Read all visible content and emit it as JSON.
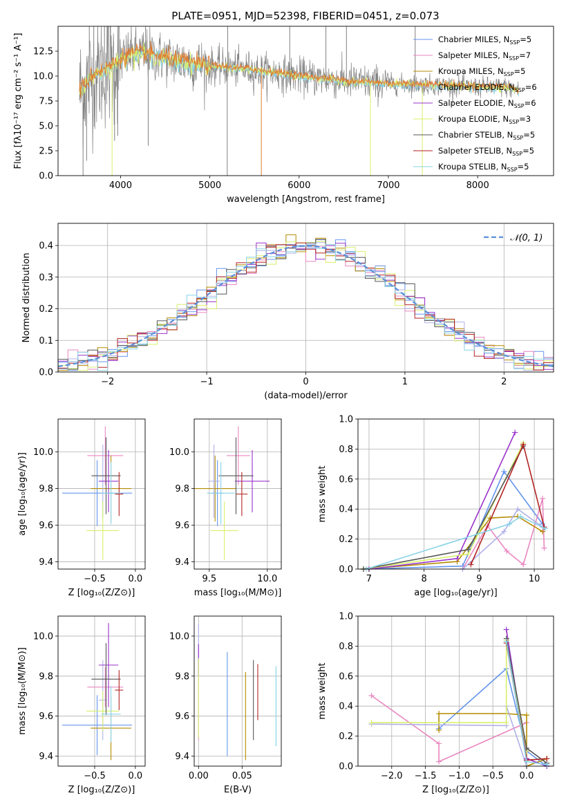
{
  "figure_title": "PLATE=0951, MJD=52398, FIBERID=0451, z=0.073",
  "series_colors": [
    "#6495ED",
    "#E986C0",
    "#B38B00",
    "#B0B0E8",
    "#9932CC",
    "#D8F06A",
    "#555555",
    "#B22222",
    "#87D2E6"
  ],
  "chart_data": [
    {
      "id": "spectrum",
      "type": "line",
      "title": "PLATE=0951, MJD=52398, FIBERID=0451, z=0.073",
      "xlabel": "wavelength [Angstrom, rest frame]",
      "ylabel": "Flux [fλ10⁻¹⁷ erg cm⁻² s⁻¹ A⁻¹]",
      "xlim": [
        3300,
        8850
      ],
      "ylim": [
        0,
        15
      ],
      "xticks": [
        "4000",
        "5000",
        "6000",
        "7000",
        "8000"
      ],
      "yticks": [
        "0.0",
        "2.5",
        "5.0",
        "7.5",
        "10.0",
        "12.5"
      ],
      "data_color": "#808080",
      "model_colors": [
        "#87D2E6",
        "#D8F06A",
        "#E07A2E"
      ],
      "legend_position": "upper right",
      "legend": [
        "Chabrier MILES, N_SSP=5",
        "Salpeter MILES, N_SSP=7",
        "Kroupa MILES, N_SSP=5",
        "Chabrier ELODIE, N_SSP=6",
        "Salpeter ELODIE, N_SSP=6",
        "Kroupa ELODIE, N_SSP=3",
        "Chabrier STELIB, N_SSP=5",
        "Salpeter STELIB, N_SSP=5",
        "Kroupa STELIB, N_SSP=5"
      ],
      "continuum": [
        [
          3550,
          8.5
        ],
        [
          3700,
          10.2
        ],
        [
          3900,
          11.0
        ],
        [
          4100,
          12.2
        ],
        [
          4300,
          12.2
        ],
        [
          4600,
          11.6
        ],
        [
          5000,
          11.0
        ],
        [
          5500,
          10.6
        ],
        [
          6000,
          10.0
        ],
        [
          6500,
          9.5
        ],
        [
          7000,
          9.2
        ],
        [
          7500,
          9.1
        ],
        [
          8000,
          8.9
        ],
        [
          8300,
          8.9
        ],
        [
          8500,
          8.5
        ]
      ],
      "spikes": [
        [
          3580,
          0
        ],
        [
          3620,
          1.5
        ],
        [
          3650,
          15
        ],
        [
          3700,
          15
        ],
        [
          3820,
          15
        ],
        [
          3905,
          0
        ],
        [
          3933,
          3.5
        ],
        [
          3968,
          4
        ],
        [
          4280,
          15
        ],
        [
          4310,
          3
        ],
        [
          5195,
          0
        ],
        [
          5200,
          15
        ],
        [
          5577,
          0
        ],
        [
          5895,
          15
        ],
        [
          6300,
          15
        ],
        [
          6530,
          15
        ],
        [
          6800,
          0
        ],
        [
          7300,
          15
        ],
        [
          7380,
          0
        ]
      ]
    },
    {
      "id": "residuals",
      "type": "histogram",
      "xlabel": "(data-model)/error",
      "ylabel": "Normed distribution",
      "xlim": [
        -2.5,
        2.5
      ],
      "ylim": [
        0,
        0.47
      ],
      "xticks": [
        "−2",
        "−1",
        "0",
        "1",
        "2"
      ],
      "yticks": [
        "0.0",
        "0.1",
        "0.2",
        "0.3",
        "0.4"
      ],
      "legend": [
        "𝒩(0, 1)"
      ],
      "legend_position": "upper right",
      "bin_edges": [
        -2.5,
        -2.4,
        -2.3,
        -2.2,
        -2.1,
        -2.0,
        -1.9,
        -1.8,
        -1.7,
        -1.6,
        -1.5,
        -1.4,
        -1.3,
        -1.2,
        -1.1,
        -1.0,
        -0.9,
        -0.8,
        -0.7,
        -0.6,
        -0.5,
        -0.4,
        -0.3,
        -0.2,
        -0.1,
        0.0,
        0.1,
        0.2,
        0.3,
        0.4,
        0.5,
        0.6,
        0.7,
        0.8,
        0.9,
        1.0,
        1.1,
        1.2,
        1.3,
        1.4,
        1.5,
        1.6,
        1.7,
        1.8,
        1.9,
        2.0,
        2.1,
        2.2,
        2.3,
        2.4,
        2.5
      ]
    },
    {
      "id": "Z-age",
      "type": "errorbar",
      "xlabel": "Z [log₁₀(Z/Z⊙)]",
      "ylabel": "age [log₁₀(age/yr)]",
      "xlim": [
        -0.95,
        0.12
      ],
      "ylim": [
        9.36,
        10.18
      ],
      "xticks": [
        "−0.5",
        "0.0"
      ],
      "yticks": [
        "9.4",
        "9.6",
        "9.8",
        "10.0"
      ],
      "points": [
        [
          -0.47,
          9.775,
          0.43,
          0.18
        ],
        [
          -0.37,
          9.98,
          0.22,
          0.16
        ],
        [
          -0.3,
          9.8,
          0.25,
          0.18
        ],
        [
          -0.4,
          9.84,
          0.05,
          0.2
        ],
        [
          -0.33,
          9.84,
          0.12,
          0.17
        ],
        [
          -0.4,
          9.57,
          0.2,
          0.16
        ],
        [
          -0.36,
          9.87,
          0.18,
          0.21
        ],
        [
          -0.2,
          9.77,
          0.05,
          0.12
        ],
        [
          -0.3,
          9.775,
          0.12,
          0.17
        ]
      ]
    },
    {
      "id": "mass-age",
      "type": "errorbar",
      "xlabel": "mass [log₁₀(M/M⊙)]",
      "ylabel": "",
      "xlim": [
        9.37,
        10.12
      ],
      "ylim": [
        9.36,
        10.18
      ],
      "xticks": [
        "9.5",
        "10.0"
      ],
      "yticks": [
        "9.4",
        "9.6",
        "9.8",
        "10.0"
      ],
      "points": [
        [
          9.57,
          9.775,
          0.05,
          0.18
        ],
        [
          9.75,
          9.98,
          0.1,
          0.16
        ],
        [
          9.55,
          9.8,
          0.18,
          0.18
        ],
        [
          9.54,
          9.84,
          0.05,
          0.2
        ],
        [
          9.87,
          9.84,
          0.15,
          0.17
        ],
        [
          9.63,
          9.57,
          0.12,
          0.16
        ],
        [
          9.73,
          9.87,
          0.15,
          0.21
        ],
        [
          9.78,
          9.77,
          0.05,
          0.12
        ],
        [
          9.6,
          9.775,
          0.12,
          0.17
        ]
      ]
    },
    {
      "id": "age-weight",
      "type": "line",
      "xlabel": "age [log₁₀(age/yr)]",
      "ylabel": "mass weight",
      "xlim": [
        6.8,
        10.35
      ],
      "ylim": [
        0,
        1.0
      ],
      "xticks": [
        "7",
        "8",
        "9",
        "10"
      ],
      "yticks": [
        "0.0",
        "0.2",
        "0.4",
        "0.6",
        "0.8",
        "1.0"
      ],
      "series": [
        {
          "values": [
            [
              6.9,
              0.0
            ],
            [
              8.7,
              0.02
            ],
            [
              9.45,
              0.65
            ],
            [
              10.15,
              0.3
            ]
          ]
        },
        {
          "values": [
            [
              8.7,
              0.0
            ],
            [
              9.15,
              0.29
            ],
            [
              9.5,
              0.12
            ],
            [
              9.8,
              0.03
            ],
            [
              10.15,
              0.47
            ],
            [
              10.18,
              0.14
            ]
          ]
        },
        {
          "values": [
            [
              6.9,
              0.0
            ],
            [
              8.6,
              0.05
            ],
            [
              9.2,
              0.34
            ],
            [
              9.7,
              0.35
            ],
            [
              10.15,
              0.25
            ]
          ]
        },
        {
          "values": [
            [
              8.7,
              0.0
            ],
            [
              9.45,
              0.25
            ],
            [
              9.7,
              0.4
            ],
            [
              10.15,
              0.28
            ]
          ]
        },
        {
          "values": [
            [
              7.0,
              0.0
            ],
            [
              8.6,
              0.07
            ],
            [
              9.65,
              0.91
            ]
          ]
        },
        {
          "values": [
            [
              6.9,
              0.0
            ],
            [
              8.8,
              0.1
            ],
            [
              9.8,
              0.84
            ]
          ]
        },
        {
          "values": [
            [
              6.9,
              0.0
            ],
            [
              8.8,
              0.13
            ],
            [
              9.8,
              0.82
            ]
          ]
        },
        {
          "values": [
            [
              8.85,
              0.03
            ],
            [
              9.8,
              0.83
            ],
            [
              10.18,
              0.28
            ]
          ]
        },
        {
          "values": [
            [
              6.95,
              0.0
            ],
            [
              9.55,
              0.3
            ],
            [
              9.75,
              0.35
            ],
            [
              10.2,
              0.27
            ]
          ]
        }
      ]
    },
    {
      "id": "Z-mass",
      "type": "errorbar",
      "xlabel": "Z [log₁₀(Z/Z⊙)]",
      "ylabel": "mass [log₁₀(M/M⊙)]",
      "xlim": [
        -0.95,
        0.12
      ],
      "ylim": [
        9.35,
        10.1
      ],
      "xticks": [
        "−0.5",
        "0.0"
      ],
      "yticks": [
        "9.4",
        "9.6",
        "9.8",
        "10.0"
      ],
      "points": [
        [
          -0.47,
          9.555,
          0.43,
          0.15
        ],
        [
          -0.37,
          9.745,
          0.22,
          0.1
        ],
        [
          -0.3,
          9.54,
          0.25,
          0.16
        ],
        [
          -0.4,
          9.68,
          0.05,
          0.2
        ],
        [
          -0.33,
          9.855,
          0.12,
          0.21
        ],
        [
          -0.4,
          9.625,
          0.2,
          0.1
        ],
        [
          -0.36,
          9.785,
          0.18,
          0.18
        ],
        [
          -0.2,
          9.73,
          0.05,
          0.1
        ],
        [
          -0.3,
          9.61,
          0.12,
          0.14
        ]
      ]
    },
    {
      "id": "EBV-mass",
      "type": "errorbar",
      "xlabel": "E(B-V)",
      "ylabel": "",
      "xlim": [
        -0.005,
        0.095
      ],
      "ylim": [
        9.35,
        10.1
      ],
      "xticks": [
        "0.00",
        "0.05"
      ],
      "yticks": [
        "9.4",
        "9.6",
        "9.8",
        "10.0"
      ],
      "points": [
        [
          0.033,
          9.66,
          0,
          0.26
        ],
        [
          0.0,
          9.7,
          0,
          0.22
        ],
        [
          0.054,
          9.6,
          0,
          0.22
        ],
        [
          0.0,
          9.93,
          0,
          0.13
        ],
        [
          0.0,
          9.88,
          0,
          0.08
        ],
        [
          0.0,
          9.69,
          0,
          0.2
        ],
        [
          0.063,
          9.68,
          0,
          0.2
        ],
        [
          0.068,
          9.72,
          0,
          0.14
        ],
        [
          0.089,
          9.65,
          0,
          0.2
        ]
      ]
    },
    {
      "id": "Z-weight",
      "type": "line",
      "xlabel": "Z [log₁₀(Z/Z⊙)]",
      "ylabel": "mass weight",
      "xlim": [
        -2.5,
        0.4
      ],
      "ylim": [
        0,
        1.0
      ],
      "xticks": [
        "−2.0",
        "−1.5",
        "−1.0",
        "−0.5",
        "0.0"
      ],
      "yticks": [
        "0.0",
        "0.2",
        "0.4",
        "0.6",
        "0.8",
        "1.0"
      ],
      "series": [
        {
          "values": [
            [
              -1.3,
              0.25
            ],
            [
              -0.3,
              0.65
            ],
            [
              0.0,
              0.1
            ],
            [
              0.3,
              0.0
            ]
          ]
        },
        {
          "values": [
            [
              -2.3,
              0.47
            ],
            [
              -1.3,
              0.15
            ],
            [
              -1.3,
              0.03
            ],
            [
              0.0,
              0.29
            ]
          ]
        },
        {
          "values": [
            [
              -1.3,
              0.24
            ],
            [
              -1.3,
              0.35
            ],
            [
              -0.3,
              0.35
            ],
            [
              0.0,
              0.34
            ],
            [
              0.0,
              0.0
            ],
            [
              0.3,
              0.05
            ]
          ]
        },
        {
          "values": [
            [
              -2.3,
              0.28
            ],
            [
              -0.3,
              0.27
            ],
            [
              -0.3,
              0.4
            ],
            [
              0.0,
              0.0
            ]
          ]
        },
        {
          "values": [
            [
              -0.3,
              0.91
            ],
            [
              0.0,
              0.05
            ],
            [
              0.3,
              0.0
            ]
          ]
        },
        {
          "values": [
            [
              -2.3,
              0.29
            ],
            [
              -0.3,
              0.29
            ],
            [
              -0.3,
              0.84
            ],
            [
              0.0,
              0.1
            ]
          ]
        },
        {
          "values": [
            [
              -0.3,
              0.85
            ],
            [
              0.0,
              0.12
            ],
            [
              0.3,
              0.02
            ]
          ]
        },
        {
          "values": [
            [
              -0.3,
              0.82
            ],
            [
              0.0,
              0.04
            ],
            [
              0.3,
              0.05
            ]
          ]
        },
        {
          "values": [
            [
              -0.3,
              0.83
            ],
            [
              0.0,
              0.03
            ],
            [
              0.3,
              0.01
            ]
          ]
        }
      ]
    }
  ]
}
